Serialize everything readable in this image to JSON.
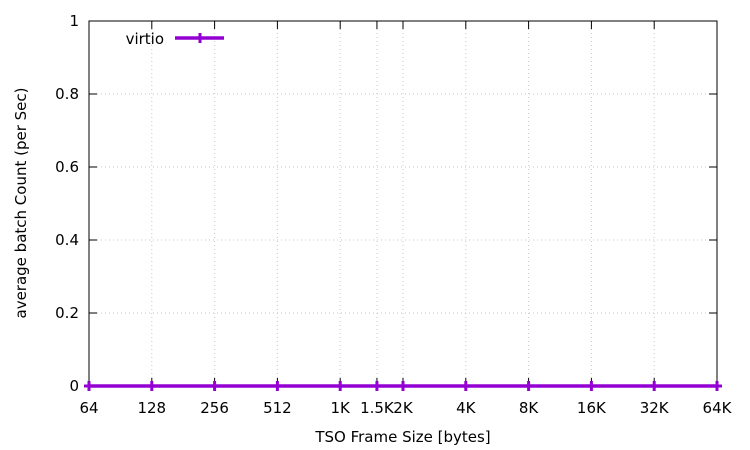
{
  "chart_data": {
    "type": "line",
    "title": "",
    "xlabel": "TSO Frame Size [bytes]",
    "ylabel": "average batch Count (per Sec)",
    "x_scale": "log2",
    "x": [
      64,
      128,
      256,
      512,
      1024,
      1536,
      2048,
      4096,
      8192,
      16384,
      32768,
      65536
    ],
    "x_tick_labels": [
      "64",
      "128",
      "256",
      "512",
      "1K",
      "1.5K",
      "2K",
      "4K",
      "8K",
      "16K",
      "32K",
      "64K"
    ],
    "xlim": [
      64,
      65536
    ],
    "ylim": [
      0,
      1
    ],
    "y_ticks": [
      0,
      0.2,
      0.4,
      0.6,
      0.8,
      1
    ],
    "y_tick_labels": [
      "0",
      "0.2",
      "0.4",
      "0.6",
      "0.8",
      "1"
    ],
    "grid": true,
    "legend_position": "top-left",
    "series": [
      {
        "name": "virtio",
        "color": "#9400d3",
        "marker": "plus",
        "values": [
          0,
          0,
          0,
          0,
          0,
          0,
          0,
          0,
          0,
          0,
          0,
          0
        ]
      }
    ]
  }
}
